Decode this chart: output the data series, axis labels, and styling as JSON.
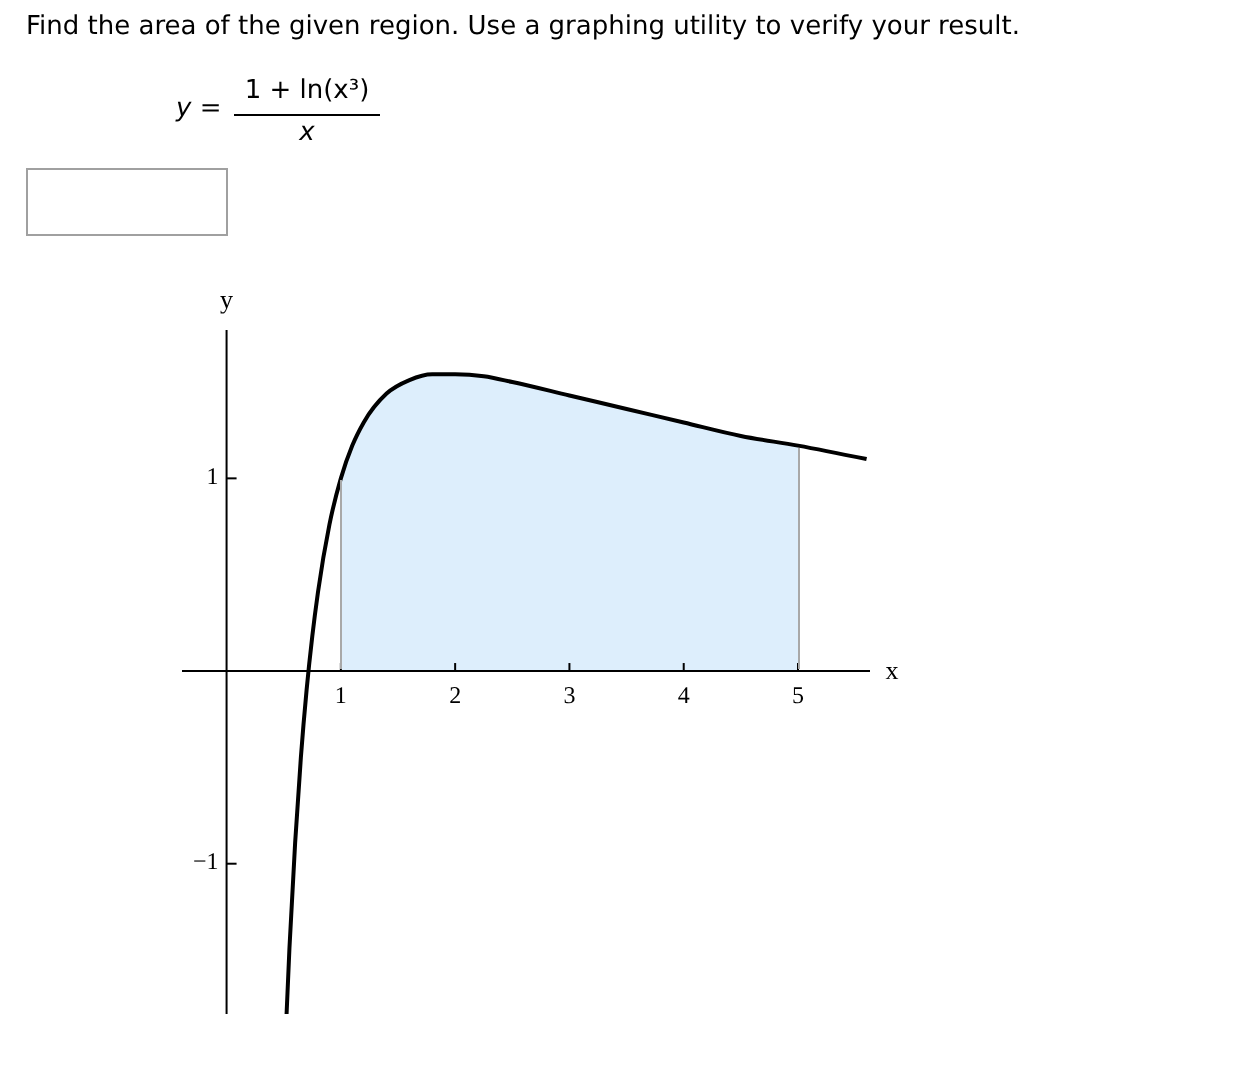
{
  "chart_data": {
    "type": "line",
    "title": "Find the area of the given region. Use a graphing utility to verify your result.",
    "xlabel": "x",
    "ylabel": "y",
    "annotations": [
      "y =",
      "1 + ln(x³)",
      "x"
    ],
    "xlim": [
      -0.39,
      5.63
    ],
    "ylim": [
      -1.78,
      1.77
    ],
    "xticks": [
      1,
      2,
      3,
      4,
      5
    ],
    "yticks": [
      -1,
      1
    ],
    "marker": "none",
    "series": [
      {
        "type": "area",
        "color": "#ddeefc",
        "x": [
          1,
          1.1,
          1.2,
          1.4,
          1.6,
          1.8,
          2,
          2.25,
          2.5,
          3,
          3.5,
          4,
          4.5,
          5
        ],
        "values": [
          1.0,
          1.17,
          1.29,
          1.44,
          1.51,
          1.54,
          1.54,
          1.53,
          1.5,
          1.43,
          1.36,
          1.29,
          1.22,
          1.17
        ]
      },
      {
        "type": "line",
        "color": "#000000",
        "x": [
          0.525,
          0.55,
          0.6,
          0.65,
          0.7,
          0.75,
          0.8,
          0.9,
          1,
          1.1,
          1.2,
          1.4,
          1.6,
          1.8,
          2,
          2.25,
          2.5,
          3,
          3.5,
          4,
          4.5,
          5,
          5.6
        ],
        "values": [
          -1.78,
          -1.44,
          -0.89,
          -0.45,
          -0.1,
          0.18,
          0.41,
          0.76,
          1.0,
          1.17,
          1.29,
          1.44,
          1.51,
          1.54,
          1.54,
          1.53,
          1.5,
          1.43,
          1.36,
          1.29,
          1.22,
          1.17,
          1.1
        ]
      }
    ]
  }
}
